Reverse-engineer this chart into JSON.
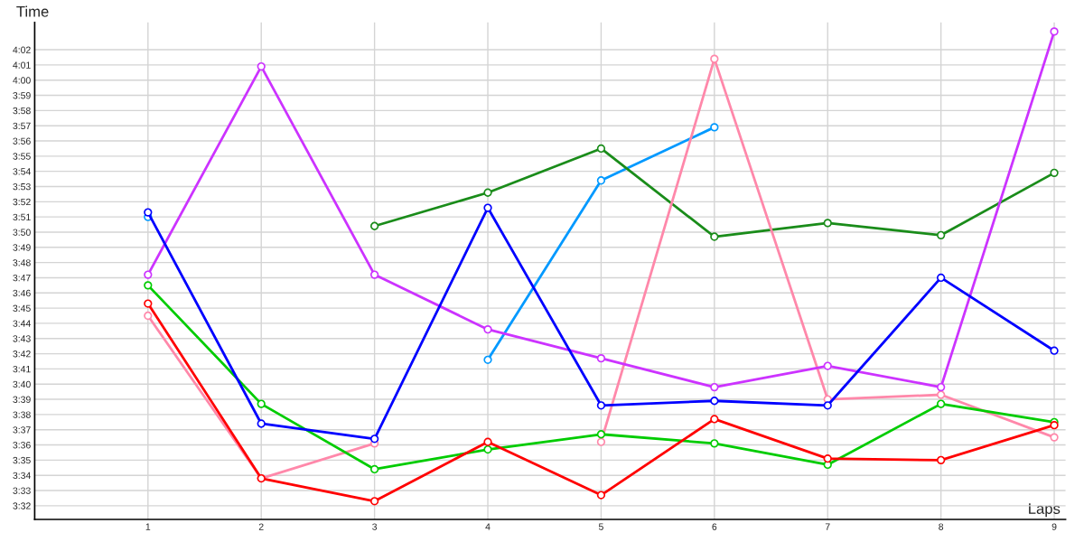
{
  "chart_data": {
    "type": "line",
    "xlabel": "Laps",
    "ylabel": "Time",
    "x": [
      1,
      2,
      3,
      4,
      5,
      6,
      7,
      8,
      9
    ],
    "xlim": [
      0,
      9.1
    ],
    "xticks": [
      1,
      2,
      3,
      4,
      5,
      6,
      7,
      8,
      9
    ],
    "ylim": [
      211.1,
      243.8
    ],
    "yticks": [
      {
        "value": 212,
        "label": "3:32"
      },
      {
        "value": 213,
        "label": "3:33"
      },
      {
        "value": 214,
        "label": "3:34"
      },
      {
        "value": 215,
        "label": "3:35"
      },
      {
        "value": 216,
        "label": "3:36"
      },
      {
        "value": 217,
        "label": "3:37"
      },
      {
        "value": 218,
        "label": "3:38"
      },
      {
        "value": 219,
        "label": "3:39"
      },
      {
        "value": 220,
        "label": "3:40"
      },
      {
        "value": 221,
        "label": "3:41"
      },
      {
        "value": 222,
        "label": "3:42"
      },
      {
        "value": 223,
        "label": "3:43"
      },
      {
        "value": 224,
        "label": "3:44"
      },
      {
        "value": 225,
        "label": "3:45"
      },
      {
        "value": 226,
        "label": "3:46"
      },
      {
        "value": 227,
        "label": "3:47"
      },
      {
        "value": 228,
        "label": "3:48"
      },
      {
        "value": 229,
        "label": "3:49"
      },
      {
        "value": 230,
        "label": "3:50"
      },
      {
        "value": 231,
        "label": "3:51"
      },
      {
        "value": 232,
        "label": "3:52"
      },
      {
        "value": 233,
        "label": "3:53"
      },
      {
        "value": 234,
        "label": "3:54"
      },
      {
        "value": 235,
        "label": "3:55"
      },
      {
        "value": 236,
        "label": "3:56"
      },
      {
        "value": 237,
        "label": "3:57"
      },
      {
        "value": 238,
        "label": "3:58"
      },
      {
        "value": 239,
        "label": "3:59"
      },
      {
        "value": 240,
        "label": "4:00"
      },
      {
        "value": 241,
        "label": "4:01"
      },
      {
        "value": 242,
        "label": "4:02"
      }
    ],
    "grid": true,
    "marker": "circle",
    "line_style": "solid",
    "series": [
      {
        "color": "#0099ff",
        "values": [
          231.0,
          null,
          null,
          221.6,
          233.4,
          236.9,
          null,
          null,
          null
        ]
      },
      {
        "color": "#1a8c1a",
        "values": [
          null,
          null,
          230.4,
          232.6,
          235.5,
          229.7,
          230.6,
          229.8,
          233.9
        ]
      },
      {
        "color": "#ff88aa",
        "values": [
          224.5,
          213.8,
          216.1,
          null,
          216.2,
          241.4,
          219.0,
          219.3,
          216.5
        ]
      },
      {
        "color": "#cc33ff",
        "values": [
          227.2,
          240.9,
          227.2,
          223.6,
          221.7,
          219.8,
          221.2,
          219.8,
          243.2
        ]
      },
      {
        "color": "#00cc00",
        "values": [
          226.5,
          218.7,
          214.4,
          215.7,
          216.7,
          216.1,
          214.7,
          218.7,
          217.5
        ]
      },
      {
        "color": "#ff0000",
        "values": [
          225.3,
          213.8,
          212.3,
          216.2,
          212.7,
          217.7,
          215.1,
          215.0,
          217.3
        ]
      },
      {
        "color": "#0000ff",
        "values": [
          231.3,
          217.4,
          216.4,
          231.6,
          218.6,
          218.9,
          218.6,
          227.0,
          222.2
        ]
      }
    ]
  }
}
